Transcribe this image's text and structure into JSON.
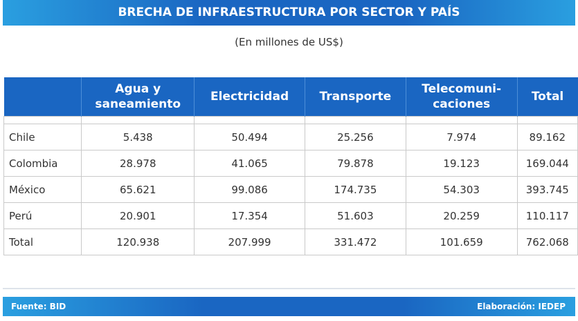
{
  "header": {
    "title": "BRECHA DE INFRAESTRUCTURA POR SECTOR Y PAÍS",
    "subtitle": "(En millones de US$)"
  },
  "table": {
    "columns": [
      "",
      "Agua y\nsaneamiento",
      "Electricidad",
      "Transporte",
      "Telecomuni-\ncaciones",
      "Total"
    ],
    "rows": [
      [
        "Chile",
        "5.438",
        "50.494",
        "25.256",
        "7.974",
        "89.162"
      ],
      [
        "Colombia",
        "28.978",
        "41.065",
        "79.878",
        "19.123",
        "169.044"
      ],
      [
        "México",
        "65.621",
        "99.086",
        "174.735",
        "54.303",
        "393.745"
      ],
      [
        "Perú",
        "20.901",
        "17.354",
        "51.603",
        "20.259",
        "110.117"
      ],
      [
        "Total",
        "120.938",
        "207.999",
        "331.472",
        "101.659",
        "762.068"
      ]
    ]
  },
  "footer": {
    "source": "Fuente: BID",
    "credit": "Elaboración: IEDEP"
  }
}
